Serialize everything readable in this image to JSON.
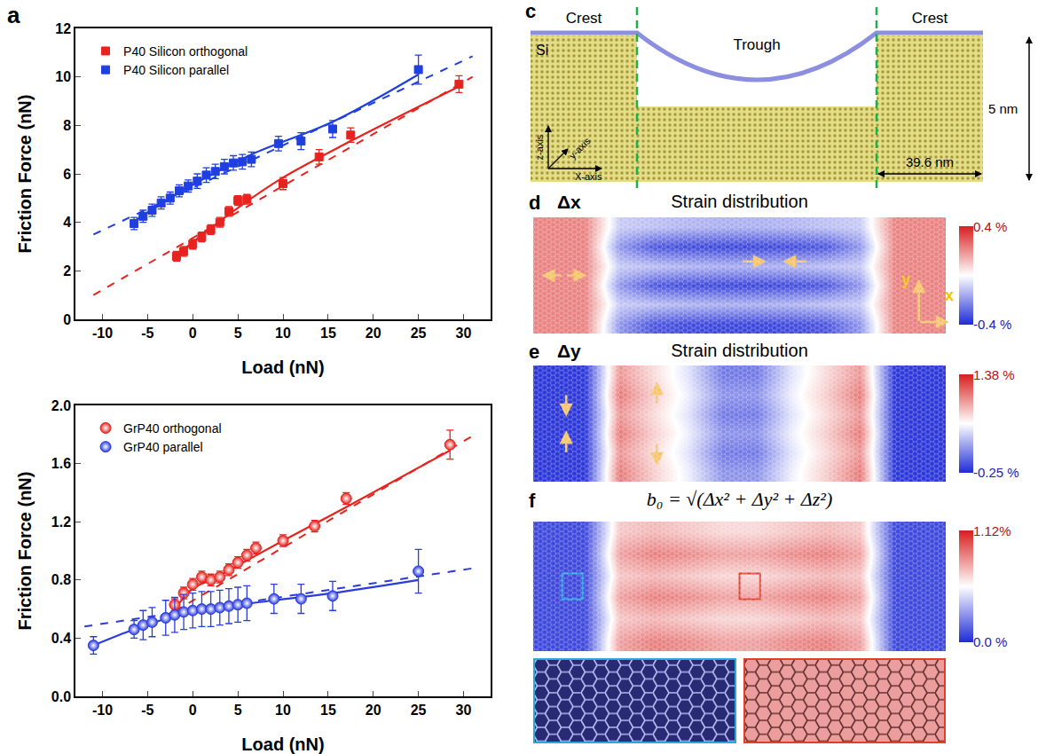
{
  "chart_data": [
    {
      "panel": "a",
      "type": "scatter",
      "x_label": "Load (nN)",
      "y_label": "Friction Force (nN)",
      "xlim": [
        -13,
        33
      ],
      "xticks": [
        -10,
        -5,
        0,
        5,
        10,
        15,
        20,
        25,
        30
      ],
      "ylim": [
        0,
        12
      ],
      "yticks": [
        0,
        2,
        4,
        6,
        8,
        10,
        12
      ],
      "legend": "upper left",
      "grid": false,
      "series": [
        {
          "name": "P40 Silicon orthogonal",
          "color": "#e8231f",
          "marker": "square",
          "x": [
            -1.8,
            -1,
            0,
            1,
            2,
            3,
            4,
            5,
            6,
            10,
            14,
            17.5,
            29.5
          ],
          "values": [
            2.6,
            2.8,
            3.1,
            3.4,
            3.7,
            4.0,
            4.45,
            4.9,
            4.95,
            5.6,
            6.7,
            7.6,
            9.7
          ],
          "errors": [
            0.2,
            0.2,
            0.2,
            0.2,
            0.2,
            0.2,
            0.2,
            0.2,
            0.2,
            0.25,
            0.3,
            0.3,
            0.35
          ],
          "fit": {
            "x": [
              -11,
              31
            ],
            "values": [
              1.0,
              10.0
            ],
            "line_style": "dashed"
          },
          "curve": {
            "x": [
              -1.8,
              5,
              10,
              17.5,
              29.5
            ],
            "values": [
              2.65,
              4.6,
              5.85,
              7.35,
              9.6
            ],
            "line_style": "solid"
          }
        },
        {
          "name": "P40 Silicon parallel",
          "color": "#1f3fe0",
          "marker": "square",
          "x": [
            -6.5,
            -5.5,
            -4.5,
            -3.5,
            -2.5,
            -1.5,
            -0.5,
            0.5,
            1.5,
            2.5,
            3.5,
            4.5,
            5.5,
            6.5,
            9.5,
            12,
            15.5,
            25
          ],
          "values": [
            3.95,
            4.25,
            4.5,
            4.8,
            5.0,
            5.3,
            5.5,
            5.7,
            5.95,
            6.1,
            6.3,
            6.45,
            6.5,
            6.6,
            7.25,
            7.35,
            7.85,
            10.3
          ],
          "errors": [
            0.25,
            0.25,
            0.25,
            0.25,
            0.25,
            0.25,
            0.25,
            0.3,
            0.3,
            0.3,
            0.3,
            0.3,
            0.3,
            0.3,
            0.3,
            0.35,
            0.35,
            0.6
          ],
          "fit": {
            "x": [
              -11,
              31
            ],
            "values": [
              3.5,
              10.85
            ],
            "line_style": "dashed"
          },
          "curve": {
            "x": [
              -6.5,
              0,
              6.5,
              15.5,
              25
            ],
            "values": [
              4.05,
              5.55,
              6.8,
              8.15,
              10.1
            ],
            "line_style": "solid"
          }
        }
      ]
    },
    {
      "type": "scatter",
      "x_label": "Load (nN)",
      "y_label": "Friction Force (nN)",
      "xlim": [
        -13,
        33
      ],
      "xticks": [
        -10,
        -5,
        0,
        5,
        10,
        15,
        20,
        25,
        30
      ],
      "ylim": [
        0,
        2
      ],
      "yticks": [
        {
          "value": 0,
          "label": "0.0"
        },
        0.4,
        0.8,
        1.2,
        1.6,
        {
          "value": 2,
          "label": "2.0"
        }
      ],
      "legend": "upper left",
      "grid": false,
      "series": [
        {
          "name": "GrP40 orthogonal",
          "color": "#e8231f",
          "marker": "circle",
          "x": [
            -2,
            -1,
            0,
            1,
            2,
            3,
            4,
            5,
            6,
            7,
            10,
            13.5,
            17,
            28.5
          ],
          "values": [
            0.63,
            0.71,
            0.77,
            0.82,
            0.8,
            0.82,
            0.87,
            0.92,
            0.97,
            1.02,
            1.07,
            1.17,
            1.36,
            1.73
          ],
          "errors": [
            0.04,
            0.04,
            0.04,
            0.04,
            0.04,
            0.04,
            0.04,
            0.04,
            0.04,
            0.04,
            0.04,
            0.04,
            0.04,
            0.1
          ],
          "fit": {
            "x": [
              -3.5,
              31
            ],
            "values": [
              0.53,
              1.79
            ],
            "line_style": "dashed"
          },
          "curve": {
            "x": [
              -2,
              0,
              2,
              5,
              10,
              17,
              28.5
            ],
            "values": [
              0.6,
              0.74,
              0.8,
              0.9,
              1.07,
              1.3,
              1.69
            ],
            "line_style": "solid"
          }
        },
        {
          "name": "GrP40 parallel",
          "color": "#2a3be0",
          "marker": "circle",
          "x": [
            -11,
            -6.5,
            -5.5,
            -4.5,
            -3,
            -2,
            -1,
            0,
            1,
            2,
            3,
            4,
            5,
            6,
            9,
            12,
            15.5,
            25
          ],
          "values": [
            0.35,
            0.46,
            0.49,
            0.51,
            0.54,
            0.56,
            0.58,
            0.59,
            0.6,
            0.6,
            0.61,
            0.62,
            0.63,
            0.64,
            0.67,
            0.67,
            0.69,
            0.86
          ],
          "errors": [
            0.06,
            0.06,
            0.1,
            0.1,
            0.12,
            0.12,
            0.12,
            0.12,
            0.12,
            0.12,
            0.12,
            0.12,
            0.12,
            0.12,
            0.1,
            0.1,
            0.1,
            0.15
          ],
          "fit": {
            "x": [
              -12,
              31
            ],
            "values": [
              0.48,
              0.88
            ],
            "line_style": "dashed"
          },
          "curve": {
            "x": [
              -11,
              -6.5,
              -2,
              3,
              9,
              15.5,
              25
            ],
            "values": [
              0.35,
              0.46,
              0.55,
              0.61,
              0.66,
              0.71,
              0.8
            ],
            "line_style": "solid"
          }
        }
      ]
    },
    {
      "panel": "d",
      "type": "heatmap",
      "label": "Δx",
      "title": "Strain distribution",
      "tick_labels": false,
      "axis_labels": [
        "x",
        "y"
      ],
      "z": [
        [
          0.22,
          0.22,
          -0.2,
          -0.32,
          -0.34,
          -0.35,
          -0.35,
          -0.34,
          -0.32,
          -0.2,
          0.22,
          0.22
        ],
        [
          0.22,
          0.22,
          -0.1,
          -0.12,
          -0.14,
          -0.15,
          -0.15,
          -0.14,
          -0.12,
          -0.1,
          0.22,
          0.22
        ],
        [
          0.22,
          0.22,
          -0.2,
          -0.32,
          -0.34,
          -0.35,
          -0.35,
          -0.34,
          -0.32,
          -0.2,
          0.22,
          0.22
        ],
        [
          0.22,
          0.22,
          -0.1,
          -0.12,
          -0.14,
          -0.15,
          -0.15,
          -0.14,
          -0.12,
          -0.1,
          0.22,
          0.22
        ],
        [
          0.22,
          0.22,
          -0.2,
          -0.32,
          -0.34,
          -0.35,
          -0.35,
          -0.34,
          -0.32,
          -0.2,
          0.22,
          0.22
        ],
        [
          0.22,
          0.22,
          -0.1,
          -0.12,
          -0.14,
          -0.15,
          -0.15,
          -0.14,
          -0.12,
          -0.1,
          0.22,
          0.22
        ]
      ],
      "colorbar": {
        "range": [
          -0.4,
          0.4
        ],
        "ticks": [
          {
            "value": 0.4,
            "label": "0.4 %"
          },
          {
            "value": -0.4,
            "label": "-0.4 %"
          }
        ]
      }
    },
    {
      "panel": "e",
      "type": "heatmap",
      "label": "Δy",
      "title": "Strain distribution",
      "tick_labels": false,
      "z": [
        [
          -0.2,
          -0.2,
          1.05,
          0.75,
          0.5,
          0.15,
          0.15,
          0.5,
          0.75,
          1.05,
          -0.2,
          -0.2
        ],
        [
          -0.2,
          -0.2,
          0.95,
          0.7,
          0.45,
          0.05,
          0.05,
          0.45,
          0.7,
          0.95,
          -0.2,
          -0.2
        ],
        [
          -0.2,
          -0.2,
          1.05,
          0.75,
          0.5,
          0.15,
          0.15,
          0.5,
          0.75,
          1.05,
          -0.2,
          -0.2
        ],
        [
          -0.2,
          -0.2,
          0.95,
          0.7,
          0.45,
          0.05,
          0.05,
          0.45,
          0.7,
          0.95,
          -0.2,
          -0.2
        ],
        [
          -0.2,
          -0.2,
          1.05,
          0.75,
          0.5,
          0.15,
          0.15,
          0.5,
          0.75,
          1.05,
          -0.2,
          -0.2
        ],
        [
          -0.2,
          -0.2,
          0.95,
          0.7,
          0.45,
          0.05,
          0.05,
          0.45,
          0.7,
          0.95,
          -0.2,
          -0.2
        ]
      ],
      "colorbar": {
        "range": [
          -0.25,
          1.38
        ],
        "ticks": [
          {
            "value": 1.38,
            "label": "1.38 %"
          },
          {
            "value": -0.25,
            "label": "-0.25 %"
          }
        ]
      }
    },
    {
      "panel": "f",
      "type": "heatmap",
      "title": "b₀ = √(Δx² + Δy² + Δz²)",
      "tick_labels": false,
      "z": [
        [
          0.08,
          0.08,
          0.8,
          0.88,
          0.85,
          0.8,
          0.8,
          0.85,
          0.88,
          0.8,
          0.08,
          0.08
        ],
        [
          0.08,
          0.08,
          0.7,
          0.74,
          0.7,
          0.66,
          0.66,
          0.7,
          0.74,
          0.7,
          0.08,
          0.08
        ],
        [
          0.08,
          0.08,
          0.8,
          0.88,
          0.85,
          0.8,
          0.8,
          0.85,
          0.88,
          0.8,
          0.08,
          0.08
        ],
        [
          0.08,
          0.08,
          0.7,
          0.74,
          0.7,
          0.66,
          0.66,
          0.7,
          0.74,
          0.7,
          0.08,
          0.08
        ],
        [
          0.08,
          0.08,
          0.8,
          0.88,
          0.85,
          0.8,
          0.8,
          0.85,
          0.88,
          0.8,
          0.08,
          0.08
        ],
        [
          0.08,
          0.08,
          0.7,
          0.74,
          0.7,
          0.66,
          0.66,
          0.7,
          0.74,
          0.7,
          0.08,
          0.08
        ]
      ],
      "colorbar": {
        "range": [
          0,
          1.12
        ],
        "ticks": [
          {
            "value": 1.12,
            "label": "1.12%"
          },
          {
            "value": 0,
            "label": "0.0 %"
          }
        ]
      }
    }
  ],
  "diagram": {
    "panel": "c",
    "regions": [
      "Crest",
      "Trough",
      "Crest"
    ],
    "material": "Si",
    "axes": [
      "z-axis",
      "y-axis",
      "X-axis"
    ],
    "height": "5 nm",
    "width": "39.6 nm"
  }
}
